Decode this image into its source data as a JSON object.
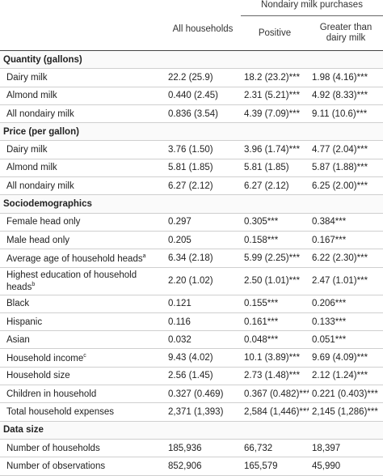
{
  "header": {
    "group": "Nondairy milk purchases",
    "columns": [
      "All households",
      "Positive",
      "Greater than dairy milk"
    ]
  },
  "sections": [
    {
      "title": "Quantity (gallons)",
      "rows": [
        {
          "label": "Dairy milk",
          "cells": [
            "22.2 (25.9)",
            "18.2 (23.2)***",
            "1.98 (4.16)***"
          ]
        },
        {
          "label": "Almond milk",
          "cells": [
            "0.440 (2.45)",
            "2.31 (5.21)***",
            "4.92 (8.33)***"
          ]
        },
        {
          "label": "All nondairy milk",
          "cells": [
            "0.836 (3.54)",
            "4.39 (7.09)***",
            "9.11 (10.6)***"
          ]
        }
      ]
    },
    {
      "title": "Price (per gallon)",
      "rows": [
        {
          "label": "Dairy milk",
          "cells": [
            "3.76 (1.50)",
            "3.96 (1.74)***",
            "4.77 (2.04)***"
          ]
        },
        {
          "label": "Almond milk",
          "cells": [
            "5.81 (1.85)",
            "5.81 (1.85)",
            "5.87 (1.88)***"
          ]
        },
        {
          "label": "All nondairy milk",
          "cells": [
            "6.27 (2.12)",
            "6.27 (2.12)",
            "6.25 (2.00)***"
          ]
        }
      ]
    },
    {
      "title": "Sociodemographics",
      "rows": [
        {
          "label": "Female head only",
          "cells": [
            "0.297",
            "0.305***",
            "0.384***"
          ]
        },
        {
          "label": "Male head only",
          "cells": [
            "0.205",
            "0.158***",
            "0.167***"
          ]
        },
        {
          "label": "Average age of household heads",
          "note": "a",
          "cells": [
            "6.34 (2.18)",
            "5.99 (2.25)***",
            "6.22 (2.30)***"
          ]
        },
        {
          "label": "Highest education of household heads",
          "note": "b",
          "cells": [
            "2.20 (1.02)",
            "2.50 (1.01)***",
            "2.47 (1.01)***"
          ]
        },
        {
          "label": "Black",
          "cells": [
            "0.121",
            "0.155***",
            "0.206***"
          ]
        },
        {
          "label": "Hispanic",
          "cells": [
            "0.116",
            "0.161***",
            "0.133***"
          ]
        },
        {
          "label": "Asian",
          "cells": [
            "0.032",
            "0.048***",
            "0.051***"
          ]
        },
        {
          "label": "Household income",
          "note": "c",
          "cells": [
            "9.43 (4.02)",
            "10.1 (3.89)***",
            "9.69 (4.09)***"
          ]
        },
        {
          "label": "Household size",
          "cells": [
            "2.56 (1.45)",
            "2.73 (1.48)***",
            "2.12 (1.24)***"
          ]
        },
        {
          "label": "Children in household",
          "cells": [
            "0.327 (0.469)",
            "0.367 (0.482)***",
            "0.221 (0.403)***"
          ]
        },
        {
          "label": "Total household expenses",
          "cells": [
            "2,371 (1,393)",
            "2,584 (1,446)***",
            "2,145 (1,286)***"
          ]
        }
      ]
    },
    {
      "title": "Data size",
      "rows": [
        {
          "label": "Number of households",
          "cells": [
            "185,936",
            "66,732",
            "18,397"
          ]
        },
        {
          "label": "Number of observations",
          "cells": [
            "852,906",
            "165,579",
            "45,990"
          ]
        }
      ]
    }
  ]
}
